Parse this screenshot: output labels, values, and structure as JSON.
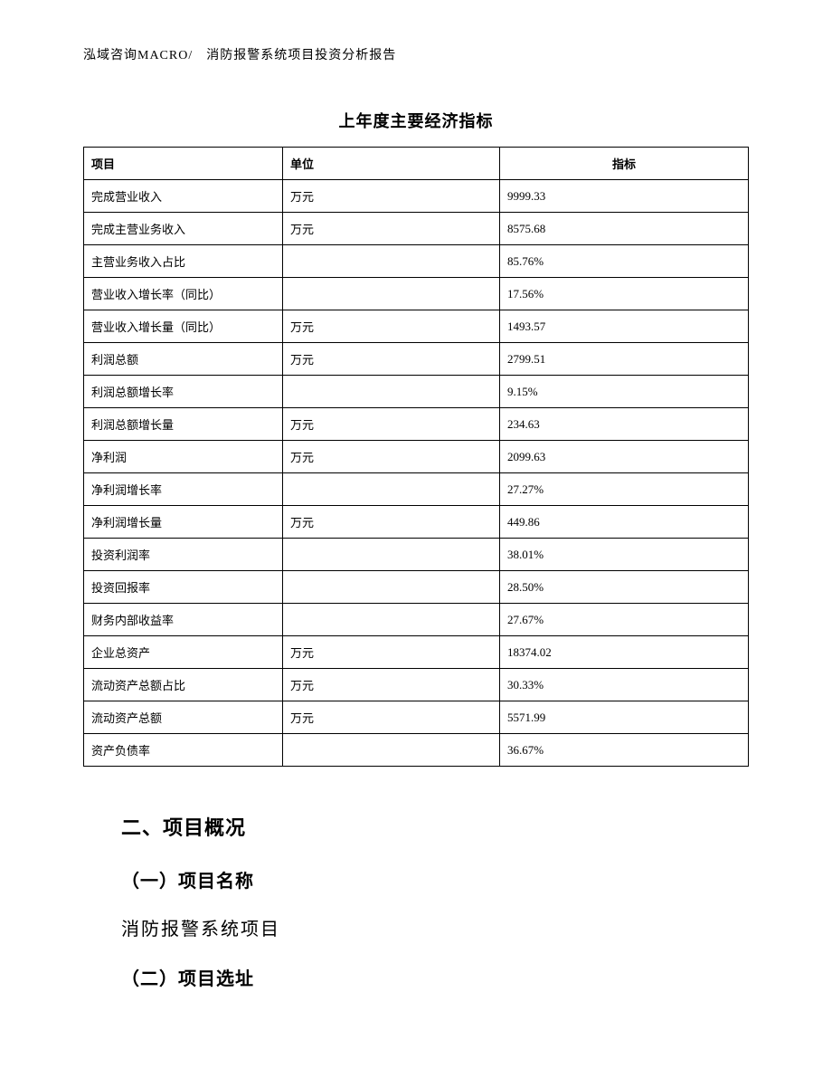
{
  "header": "泓域咨询MACRO/　消防报警系统项目投资分析报告",
  "table": {
    "title": "上年度主要经济指标",
    "columns": [
      "项目",
      "单位",
      "指标"
    ],
    "rows": [
      [
        "完成营业收入",
        "万元",
        "9999.33"
      ],
      [
        "完成主营业务收入",
        "万元",
        "8575.68"
      ],
      [
        "主营业务收入占比",
        "",
        "85.76%"
      ],
      [
        "营业收入增长率（同比）",
        "",
        "17.56%"
      ],
      [
        "营业收入增长量（同比）",
        "万元",
        "1493.57"
      ],
      [
        "利润总额",
        "万元",
        "2799.51"
      ],
      [
        "利润总额增长率",
        "",
        "9.15%"
      ],
      [
        "利润总额增长量",
        "万元",
        "234.63"
      ],
      [
        "净利润",
        "万元",
        "2099.63"
      ],
      [
        "净利润增长率",
        "",
        "27.27%"
      ],
      [
        "净利润增长量",
        "万元",
        "449.86"
      ],
      [
        "投资利润率",
        "",
        "38.01%"
      ],
      [
        "投资回报率",
        "",
        "28.50%"
      ],
      [
        "财务内部收益率",
        "",
        "27.67%"
      ],
      [
        "企业总资产",
        "万元",
        "18374.02"
      ],
      [
        "流动资产总额占比",
        "万元",
        "30.33%"
      ],
      [
        "流动资产总额",
        "万元",
        "5571.99"
      ],
      [
        "资产负债率",
        "",
        "36.67%"
      ]
    ]
  },
  "sections": {
    "section2_title": "二、项目概况",
    "subsection1_title": "（一）项目名称",
    "subsection1_body": "消防报警系统项目",
    "subsection2_title": "（二）项目选址"
  }
}
